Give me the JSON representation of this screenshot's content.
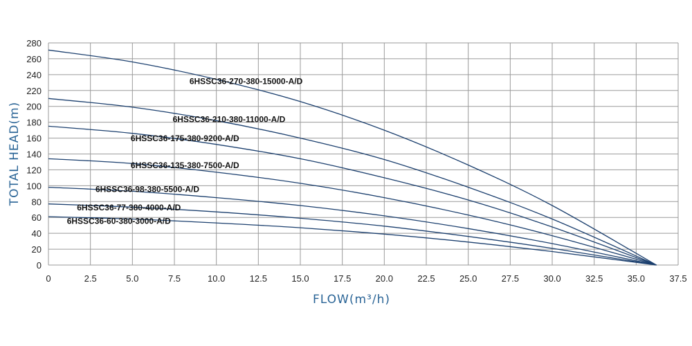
{
  "chart_data": {
    "type": "line",
    "xlabel": "FLOW(m³/h)",
    "ylabel": "TOTAL HEAD(m)",
    "xlim": [
      0,
      37.5
    ],
    "ylim": [
      0,
      280
    ],
    "x_ticks": [
      "0",
      "2.5",
      "5.0",
      "7.5",
      "10.0",
      "12.5",
      "15.0",
      "17.5",
      "20.0",
      "22.5",
      "25.0",
      "27.5",
      "30.0",
      "32.5",
      "35.0",
      "37.5"
    ],
    "y_ticks": [
      "0",
      "20",
      "40",
      "60",
      "80",
      "100",
      "120",
      "140",
      "160",
      "180",
      "200",
      "220",
      "240",
      "260",
      "280"
    ],
    "grid": true,
    "series": [
      {
        "name": "6HSSC36-270-380-15000-A/D",
        "x": [
          0,
          5,
          10,
          15,
          20,
          25,
          30,
          36.2
        ],
        "y": [
          271,
          256,
          234,
          206,
          170,
          126,
          75,
          0
        ]
      },
      {
        "name": "6HSSC36-210-380-11000-A/D",
        "x": [
          0,
          5,
          10,
          15,
          20,
          25,
          30,
          36.2
        ],
        "y": [
          210,
          199,
          182,
          160,
          133,
          98,
          58,
          0
        ]
      },
      {
        "name": "6HSSC36-175-380-9200-A/D",
        "x": [
          0,
          5,
          10,
          15,
          20,
          25,
          30,
          36.2
        ],
        "y": [
          175,
          166,
          152,
          134,
          110,
          82,
          48,
          0
        ]
      },
      {
        "name": "6HSSC36-135-380-7500-A/D",
        "x": [
          0,
          5,
          10,
          15,
          20,
          25,
          30,
          36.2
        ],
        "y": [
          134,
          128,
          117,
          103,
          85,
          63,
          37,
          0
        ]
      },
      {
        "name": "6HSSC36-98-380-5500-A/D",
        "x": [
          0,
          5,
          10,
          15,
          20,
          25,
          30,
          36.2
        ],
        "y": [
          98,
          93,
          85,
          75,
          62,
          46,
          27,
          0
        ]
      },
      {
        "name": "6HSSC36-77-380-4000-A/D",
        "x": [
          0,
          5,
          10,
          15,
          20,
          25,
          30,
          36.2
        ],
        "y": [
          77,
          73,
          67,
          59,
          49,
          36,
          21,
          0
        ]
      },
      {
        "name": "6HSSC36-60-380-3000-A/D",
        "x": [
          0,
          5,
          10,
          15,
          20,
          25,
          30,
          36.2
        ],
        "y": [
          61,
          58,
          53,
          47,
          39,
          29,
          17,
          0
        ]
      }
    ],
    "annotations": [
      {
        "text": "6HSSC36-270-380-15000-A/D",
        "x": 8.4,
        "y": 228
      },
      {
        "text": "6HSSC36-210-380-11000-A/D",
        "x": 7.4,
        "y": 180
      },
      {
        "text": "6HSSC36-175-380-9200-A/D",
        "x": 4.9,
        "y": 156
      },
      {
        "text": "6HSSC36-135-380-7500-A/D",
        "x": 4.9,
        "y": 122
      },
      {
        "text": "6HSSC36-98-380-5500-A/D",
        "x": 2.8,
        "y": 92
      },
      {
        "text": "6HSSC36-77-380-4000-A/D",
        "x": 1.7,
        "y": 69
      },
      {
        "text": "6HSSC36-60-380-3000-A/D",
        "x": 1.1,
        "y": 52
      }
    ]
  }
}
